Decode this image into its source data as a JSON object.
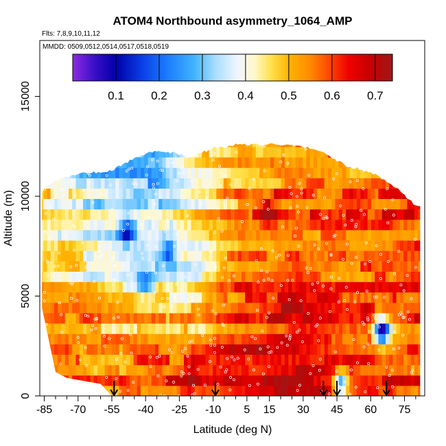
{
  "chart_data": {
    "type": "heatmap",
    "title": "ATOM4 Northbound asymmetry_1064_AMP",
    "subtitle_flights": "Flts: 7,8,9,10,11,12",
    "subtitle_dates": "MMDD: 0509,0512,0514,0517,0518,0519",
    "xlabel": "Latitude (deg N)",
    "ylabel": "Altitude (m)",
    "xlim": [
      -87,
      84
    ],
    "ylim": [
      0,
      17800
    ],
    "x_tick_labels": [
      "-85",
      "-70",
      "-55",
      "-40",
      "-25",
      "-10",
      "5",
      "15",
      "30",
      "45",
      "60",
      "75"
    ],
    "x_tick_values": [
      -85,
      -70,
      -55,
      -40,
      -25,
      -10,
      5,
      15,
      30,
      45,
      60,
      75
    ],
    "x_minor_ticks": [
      -80,
      -75,
      -65,
      -60,
      -50,
      -45,
      -35,
      -30,
      -20,
      -15,
      -5,
      0,
      10,
      20,
      25,
      35,
      40,
      50,
      55,
      65,
      70,
      80
    ],
    "y_tick_labels": [
      "0",
      "5000",
      "10000",
      "15000"
    ],
    "y_tick_values": [
      0,
      5000,
      10000,
      15000
    ],
    "colorbar": {
      "range": [
        0,
        0.74
      ],
      "tick_labels": [
        "0.1",
        "0.2",
        "0.3",
        "0.4",
        "0.5",
        "0.6",
        "0.7"
      ],
      "tick_values": [
        0.1,
        0.2,
        0.3,
        0.4,
        0.5,
        0.6,
        0.7
      ],
      "stops": [
        {
          "v": 0.0,
          "c": "#8c2be2"
        },
        {
          "v": 0.05,
          "c": "#3a0fc8"
        },
        {
          "v": 0.1,
          "c": "#0000a8"
        },
        {
          "v": 0.16,
          "c": "#0a3ee6"
        },
        {
          "v": 0.22,
          "c": "#1d7dff"
        },
        {
          "v": 0.28,
          "c": "#3fb2ff"
        },
        {
          "v": 0.33,
          "c": "#a9ddff"
        },
        {
          "v": 0.38,
          "c": "#eef5ff"
        },
        {
          "v": 0.42,
          "c": "#fff8cc"
        },
        {
          "v": 0.46,
          "c": "#ffe04a"
        },
        {
          "v": 0.5,
          "c": "#ffb400"
        },
        {
          "v": 0.55,
          "c": "#ff8a00"
        },
        {
          "v": 0.6,
          "c": "#ff3c00"
        },
        {
          "v": 0.64,
          "c": "#ee0000"
        },
        {
          "v": 0.69,
          "c": "#c40000"
        },
        {
          "v": 0.74,
          "c": "#a01818"
        }
      ]
    },
    "arrow_latitudes": [
      -54,
      -9,
      39,
      45,
      67
    ],
    "data_extent": {
      "top_altitude_by_latitude": [
        {
          "lat": -86,
          "alt": 10300
        },
        {
          "lat": -80,
          "alt": 10800
        },
        {
          "lat": -70,
          "alt": 11100
        },
        {
          "lat": -55,
          "alt": 11300
        },
        {
          "lat": -45,
          "alt": 11900
        },
        {
          "lat": -35,
          "alt": 12300
        },
        {
          "lat": -20,
          "alt": 12000
        },
        {
          "lat": -10,
          "alt": 12400
        },
        {
          "lat": 0,
          "alt": 12600
        },
        {
          "lat": 20,
          "alt": 12600
        },
        {
          "lat": 35,
          "alt": 12400
        },
        {
          "lat": 50,
          "alt": 11500
        },
        {
          "lat": 62,
          "alt": 11100
        },
        {
          "lat": 72,
          "alt": 10400
        },
        {
          "lat": 80,
          "alt": 9500
        }
      ],
      "bottom_altitude_by_latitude": [
        {
          "lat": -86,
          "alt": 4400
        },
        {
          "lat": -80,
          "alt": 1200
        },
        {
          "lat": -75,
          "alt": 900
        },
        {
          "lat": -60,
          "alt": 600
        },
        {
          "lat": -55,
          "alt": 0
        },
        {
          "lat": 80,
          "alt": 0
        }
      ]
    },
    "field_regions": [
      {
        "lat_min": -87,
        "lat_max": -67,
        "alt_min": 0,
        "alt_max": 6500,
        "value": 0.55
      },
      {
        "lat_min": -87,
        "lat_max": -67,
        "alt_min": 6500,
        "alt_max": 11000,
        "value": 0.44
      },
      {
        "lat_min": -67,
        "lat_max": -48,
        "alt_min": 0,
        "alt_max": 4000,
        "value": 0.53
      },
      {
        "lat_min": -67,
        "lat_max": -48,
        "alt_min": 4000,
        "alt_max": 9500,
        "value": 0.4
      },
      {
        "lat_min": -67,
        "lat_max": -48,
        "alt_min": 9500,
        "alt_max": 12000,
        "value": 0.33
      },
      {
        "lat_min": -48,
        "lat_max": -28,
        "alt_min": 0,
        "alt_max": 3500,
        "value": 0.56
      },
      {
        "lat_min": -48,
        "lat_max": -28,
        "alt_min": 3500,
        "alt_max": 9500,
        "value": 0.36
      },
      {
        "lat_min": -48,
        "lat_max": -28,
        "alt_min": 9500,
        "alt_max": 12500,
        "value": 0.3
      },
      {
        "lat_min": -28,
        "lat_max": -10,
        "alt_min": 0,
        "alt_max": 3000,
        "value": 0.6
      },
      {
        "lat_min": -28,
        "lat_max": -10,
        "alt_min": 3000,
        "alt_max": 8500,
        "value": 0.38
      },
      {
        "lat_min": -28,
        "lat_max": -10,
        "alt_min": 8500,
        "alt_max": 12500,
        "value": 0.46
      },
      {
        "lat_min": -10,
        "lat_max": 15,
        "alt_min": 0,
        "alt_max": 4500,
        "value": 0.64
      },
      {
        "lat_min": -10,
        "lat_max": 15,
        "alt_min": 4500,
        "alt_max": 9000,
        "value": 0.55
      },
      {
        "lat_min": -10,
        "lat_max": 15,
        "alt_min": 9000,
        "alt_max": 12700,
        "value": 0.52
      },
      {
        "lat_min": 15,
        "lat_max": 40,
        "alt_min": 0,
        "alt_max": 5000,
        "value": 0.66
      },
      {
        "lat_min": 15,
        "lat_max": 40,
        "alt_min": 5000,
        "alt_max": 12700,
        "value": 0.57
      },
      {
        "lat_min": 40,
        "lat_max": 60,
        "alt_min": 0,
        "alt_max": 5000,
        "value": 0.6
      },
      {
        "lat_min": 40,
        "lat_max": 60,
        "alt_min": 5000,
        "alt_max": 12000,
        "value": 0.56
      },
      {
        "lat_min": 60,
        "lat_max": 84,
        "alt_min": 0,
        "alt_max": 5000,
        "value": 0.58
      },
      {
        "lat_min": 60,
        "lat_max": 84,
        "alt_min": 5000,
        "alt_max": 11500,
        "value": 0.6
      }
    ],
    "highlights": [
      {
        "lat": -48,
        "alt": 8300,
        "value": 0.1
      },
      {
        "lat": -30,
        "alt": 7200,
        "value": 0.2
      },
      {
        "lat": -40,
        "alt": 5800,
        "value": 0.25
      },
      {
        "lat": 65,
        "alt": 3300,
        "value": 0.12
      },
      {
        "lat": 47,
        "alt": 700,
        "value": 0.28
      },
      {
        "lat": 15,
        "alt": 9200,
        "value": 0.72
      },
      {
        "lat": -20,
        "alt": 1200,
        "value": 0.7
      }
    ],
    "marker_color": "#ffffff"
  }
}
